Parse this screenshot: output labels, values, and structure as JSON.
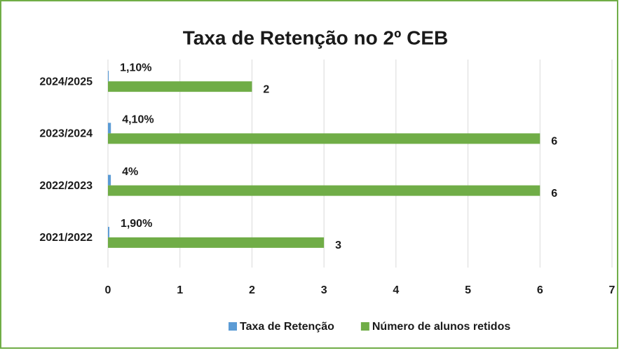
{
  "chart_data": {
    "type": "barh",
    "title": "Taxa de Retenção no 2º CEB",
    "categories": [
      "2021/2022",
      "2022/2023",
      "2023/2024",
      "2024/2025"
    ],
    "series": [
      {
        "name": "Taxa de Retenção",
        "color": "#5b9bd5",
        "values": [
          0.019,
          0.04,
          0.041,
          0.011
        ],
        "value_labels": [
          "1,90%",
          "4%",
          "4,10%",
          "1,10%"
        ]
      },
      {
        "name": "Número de alunos retidos",
        "color": "#70ad47",
        "values": [
          3,
          6,
          6,
          2
        ]
      }
    ],
    "xlim": [
      0,
      7
    ],
    "xticks": [
      0,
      1,
      2,
      3,
      4,
      5,
      6,
      7
    ],
    "grid": true,
    "legend": "bottom"
  }
}
